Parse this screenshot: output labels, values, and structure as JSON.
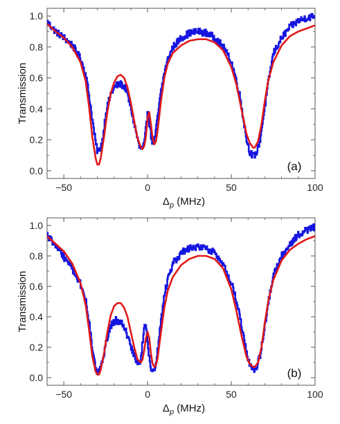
{
  "chart_data": [
    {
      "type": "line",
      "panel_label": "(a)",
      "xlabel_main": "Δ",
      "xlabel_sub": "p",
      "xlabel_unit": " (MHz)",
      "ylabel": "Transmission",
      "xlim": [
        -60,
        100
      ],
      "ylim": [
        -0.05,
        1.05
      ],
      "xticks": [
        "-50",
        "0",
        "50",
        "100"
      ],
      "xtick_values": [
        -50,
        0,
        50,
        100
      ],
      "yticks": [
        "0.0",
        "0.2",
        "0.4",
        "0.6",
        "0.8",
        "1.0"
      ],
      "ytick_values": [
        0,
        0.2,
        0.4,
        0.6,
        0.8,
        1.0
      ],
      "grid": false,
      "series": [
        {
          "color": "#1515e0",
          "style": "noisy-data",
          "x": [
            -60,
            -55,
            -50,
            -45,
            -40,
            -37,
            -35,
            -33,
            -31,
            -30,
            -29,
            -27,
            -25,
            -22,
            -19,
            -16,
            -13,
            -10,
            -7,
            -5,
            -3,
            -2,
            -1,
            0,
            1,
            2,
            3,
            4,
            5,
            6,
            8,
            10,
            12,
            15,
            20,
            25,
            30,
            35,
            40,
            45,
            50,
            52,
            55,
            57,
            59,
            61,
            63,
            65,
            67,
            69,
            71,
            73,
            75,
            80,
            85,
            90,
            95,
            100
          ],
          "y": [
            0.96,
            0.9,
            0.86,
            0.81,
            0.72,
            0.62,
            0.48,
            0.32,
            0.17,
            0.12,
            0.13,
            0.2,
            0.38,
            0.5,
            0.55,
            0.56,
            0.53,
            0.4,
            0.25,
            0.15,
            0.14,
            0.18,
            0.28,
            0.4,
            0.3,
            0.22,
            0.18,
            0.2,
            0.27,
            0.36,
            0.52,
            0.64,
            0.72,
            0.8,
            0.86,
            0.89,
            0.9,
            0.89,
            0.86,
            0.8,
            0.7,
            0.62,
            0.48,
            0.34,
            0.2,
            0.12,
            0.09,
            0.12,
            0.2,
            0.35,
            0.5,
            0.64,
            0.76,
            0.86,
            0.93,
            0.97,
            0.99,
            1.0
          ]
        },
        {
          "color": "#e01818",
          "style": "smooth-fit",
          "x": [
            -60,
            -55,
            -50,
            -45,
            -40,
            -37,
            -35,
            -33,
            -31,
            -30,
            -29,
            -28,
            -26,
            -24,
            -22,
            -20,
            -18,
            -16,
            -14,
            -12,
            -10,
            -8,
            -6,
            -4,
            -3,
            -2,
            -1,
            0,
            1,
            2,
            3,
            4,
            5,
            6,
            8,
            10,
            12,
            15,
            20,
            25,
            30,
            35,
            40,
            45,
            50,
            53,
            56,
            59,
            61,
            63,
            64,
            66,
            68,
            70,
            72,
            75,
            80,
            85,
            90,
            95,
            100
          ],
          "y": [
            0.95,
            0.9,
            0.86,
            0.8,
            0.7,
            0.58,
            0.42,
            0.22,
            0.08,
            0.04,
            0.04,
            0.08,
            0.22,
            0.38,
            0.5,
            0.57,
            0.61,
            0.62,
            0.6,
            0.54,
            0.44,
            0.32,
            0.21,
            0.15,
            0.14,
            0.16,
            0.22,
            0.34,
            0.38,
            0.3,
            0.21,
            0.17,
            0.19,
            0.26,
            0.45,
            0.6,
            0.69,
            0.76,
            0.81,
            0.84,
            0.85,
            0.85,
            0.83,
            0.78,
            0.67,
            0.56,
            0.4,
            0.24,
            0.18,
            0.15,
            0.15,
            0.19,
            0.3,
            0.45,
            0.58,
            0.7,
            0.81,
            0.87,
            0.9,
            0.92,
            0.94
          ]
        }
      ]
    },
    {
      "type": "line",
      "panel_label": "(b)",
      "xlabel_main": "Δ",
      "xlabel_sub": "p",
      "xlabel_unit": " (MHz)",
      "ylabel": "Transmission",
      "xlim": [
        -60,
        100
      ],
      "ylim": [
        -0.05,
        1.05
      ],
      "xticks": [
        "-50",
        "0",
        "50",
        "100"
      ],
      "xtick_values": [
        -50,
        0,
        50,
        100
      ],
      "yticks": [
        "0.0",
        "0.2",
        "0.4",
        "0.6",
        "0.8",
        "1.0"
      ],
      "ytick_values": [
        0,
        0.2,
        0.4,
        0.6,
        0.8,
        1.0
      ],
      "grid": false,
      "series": [
        {
          "color": "#1515e0",
          "style": "noisy-data",
          "x": [
            -60,
            -55,
            -50,
            -45,
            -40,
            -37,
            -35,
            -33,
            -31,
            -30,
            -29,
            -27,
            -25,
            -22,
            -19,
            -16,
            -13,
            -10,
            -7,
            -5,
            -4,
            -3,
            -2,
            -1,
            0,
            1,
            2,
            3,
            4,
            5,
            6,
            8,
            10,
            12,
            15,
            20,
            25,
            30,
            35,
            40,
            45,
            50,
            52,
            55,
            57,
            59,
            61,
            63,
            65,
            67,
            69,
            71,
            73,
            75,
            80,
            85,
            90,
            95,
            100
          ],
          "y": [
            0.94,
            0.86,
            0.79,
            0.71,
            0.61,
            0.5,
            0.36,
            0.18,
            0.05,
            0.03,
            0.04,
            0.1,
            0.24,
            0.34,
            0.38,
            0.36,
            0.3,
            0.2,
            0.12,
            0.08,
            0.14,
            0.24,
            0.34,
            0.32,
            0.22,
            0.12,
            0.05,
            0.04,
            0.05,
            0.1,
            0.2,
            0.38,
            0.55,
            0.65,
            0.75,
            0.82,
            0.85,
            0.86,
            0.85,
            0.82,
            0.74,
            0.62,
            0.54,
            0.4,
            0.28,
            0.16,
            0.08,
            0.05,
            0.07,
            0.14,
            0.28,
            0.42,
            0.56,
            0.68,
            0.8,
            0.88,
            0.94,
            0.97,
            0.99
          ]
        },
        {
          "color": "#e01818",
          "style": "smooth-fit",
          "x": [
            -60,
            -55,
            -50,
            -45,
            -40,
            -37,
            -35,
            -33,
            -31,
            -30,
            -29,
            -28,
            -26,
            -24,
            -22,
            -20,
            -18,
            -16,
            -14,
            -12,
            -10,
            -8,
            -6,
            -4,
            -3,
            -2,
            -1,
            0,
            1,
            2,
            3,
            4,
            5,
            6,
            8,
            10,
            12,
            15,
            20,
            25,
            30,
            35,
            40,
            45,
            50,
            53,
            56,
            59,
            61,
            63,
            64,
            66,
            68,
            70,
            72,
            75,
            80,
            85,
            90,
            95,
            100
          ],
          "y": [
            0.93,
            0.88,
            0.83,
            0.75,
            0.62,
            0.48,
            0.32,
            0.14,
            0.04,
            0.02,
            0.02,
            0.05,
            0.16,
            0.3,
            0.41,
            0.47,
            0.49,
            0.49,
            0.46,
            0.4,
            0.3,
            0.2,
            0.12,
            0.1,
            0.12,
            0.18,
            0.26,
            0.3,
            0.26,
            0.16,
            0.09,
            0.07,
            0.08,
            0.13,
            0.3,
            0.46,
            0.57,
            0.66,
            0.74,
            0.78,
            0.8,
            0.8,
            0.78,
            0.72,
            0.58,
            0.44,
            0.28,
            0.14,
            0.09,
            0.07,
            0.07,
            0.1,
            0.2,
            0.36,
            0.5,
            0.64,
            0.77,
            0.84,
            0.88,
            0.91,
            0.93
          ]
        }
      ]
    }
  ]
}
